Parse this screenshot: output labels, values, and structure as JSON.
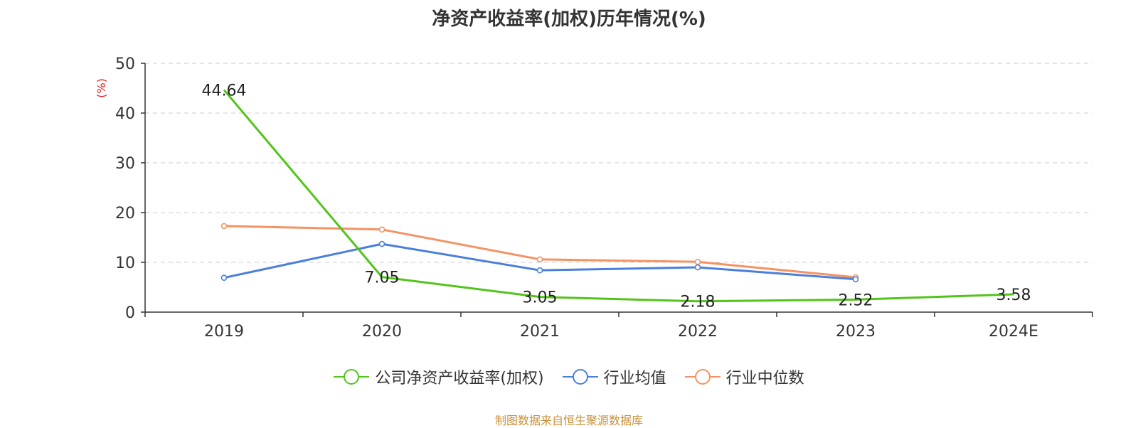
{
  "chart_data": {
    "type": "line",
    "title": "净资产收益率(加权)历年情况(%)",
    "ylabel": "(%)",
    "xlabel": "",
    "ylim": [
      0,
      50
    ],
    "yticks": [
      0,
      10,
      20,
      30,
      40,
      50
    ],
    "categories": [
      "2019",
      "2020",
      "2021",
      "2022",
      "2023",
      "2024E"
    ],
    "grid": true,
    "legend_position": "bottom",
    "series": [
      {
        "name": "公司净资产收益率(加权)",
        "color": "#52c41a",
        "values": [
          44.64,
          7.05,
          3.05,
          2.18,
          2.52,
          3.58
        ],
        "labels": [
          "44.64",
          "7.05",
          "3.05",
          "2.18",
          "2.52",
          "3.58"
        ],
        "markers": false
      },
      {
        "name": "行业均值",
        "color": "#4a7fdb",
        "values": [
          6.9,
          13.7,
          8.4,
          9.0,
          6.6,
          null
        ],
        "markers": true
      },
      {
        "name": "行业中位数",
        "color": "#f59263",
        "values": [
          17.3,
          16.6,
          10.6,
          10.1,
          7.0,
          null
        ],
        "markers": true
      }
    ]
  },
  "footer": {
    "source": "制图数据来自恒生聚源数据库"
  }
}
